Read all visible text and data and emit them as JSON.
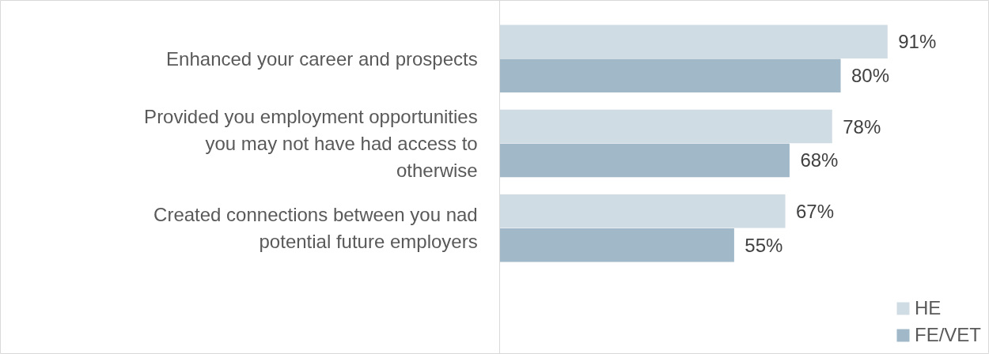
{
  "chart_data": {
    "type": "bar",
    "orientation": "horizontal",
    "categories": [
      "Enhanced your career and prospects",
      "Provided you employment opportunities you may not have had access to otherwise",
      "Created connections between you nad potential future employers"
    ],
    "series": [
      {
        "name": "HE",
        "color": "#d0dce3",
        "values": [
          91,
          78,
          67
        ],
        "value_labels": [
          "91%",
          "78%",
          "67%"
        ]
      },
      {
        "name": "FE/VET",
        "color": "#a0b8c8",
        "values": [
          80,
          68,
          55
        ],
        "value_labels": [
          "80%",
          "68%",
          "55%"
        ]
      }
    ],
    "legend": "bottom right",
    "grid": false
  }
}
